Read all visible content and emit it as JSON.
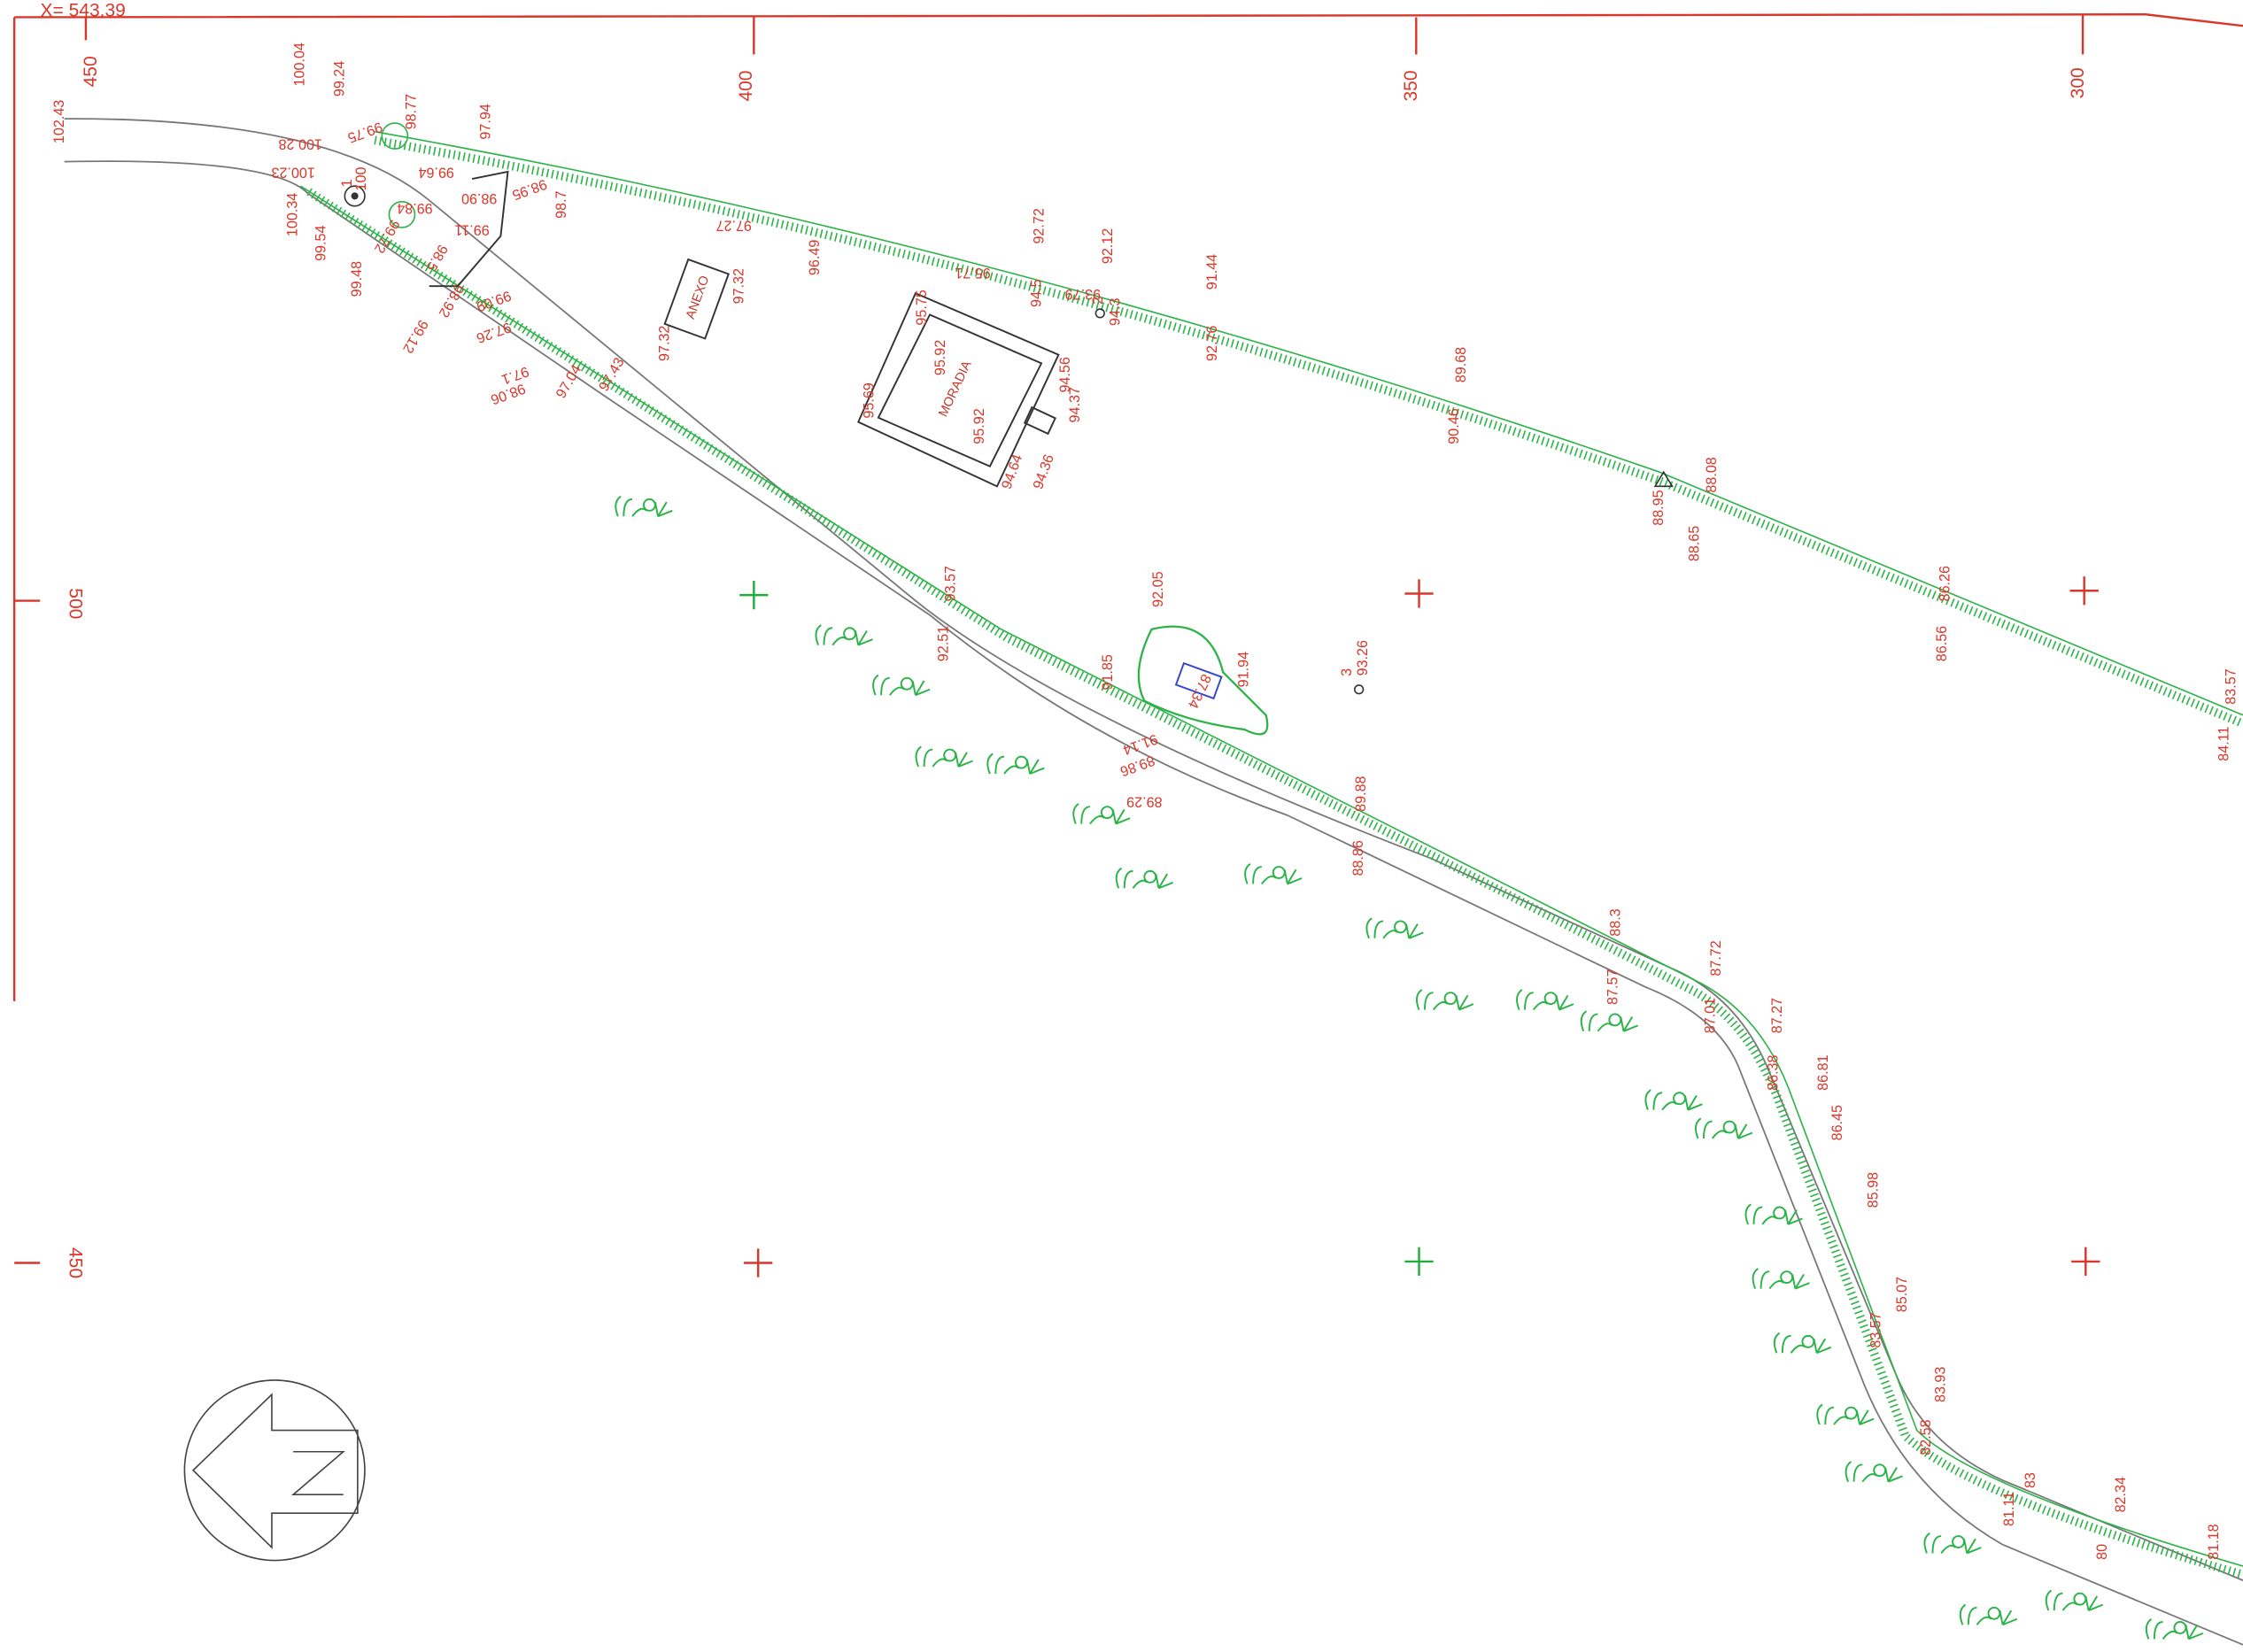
{
  "header": {
    "coordinate": "X= 543.39"
  },
  "grid_labels": [
    "450",
    "400",
    "350",
    "300",
    "500",
    "450"
  ],
  "buildings": [
    "ANEXO",
    "MORADIA"
  ],
  "point_ids": [
    "1",
    "2",
    "3"
  ],
  "spot_heights": [
    "102.43",
    "100.04",
    "99.24",
    "99.75",
    "98.77",
    "97.94",
    "100.28",
    "100.23",
    "100.34",
    "100",
    "99.64",
    "99.84",
    "99.72",
    "99.54",
    "99.48",
    "99.12",
    "98.92",
    "99.09",
    "97.26",
    "98.5",
    "99.11",
    "98.90",
    "98.95",
    "98.7",
    "97.1",
    "98.06",
    "97.04",
    "97.43",
    "97.27",
    "96.49",
    "97.32",
    "97.32",
    "95.71",
    "95.75",
    "95.92",
    "95.69",
    "95.92",
    "94.64",
    "94.36",
    "94.37",
    "94.56",
    "94.5",
    "93.79",
    "92.72",
    "92.12",
    "94.3",
    "91.44",
    "92.76",
    "90.46",
    "89.68",
    "88.95",
    "88.08",
    "88.65",
    "86.56",
    "86.26",
    "84.11",
    "83.57",
    "93.57",
    "92.51",
    "92.05",
    "91.85",
    "91.94",
    "87.34",
    "93.26",
    "91.14",
    "89.86",
    "89.29",
    "88.86",
    "89.88",
    "88.3",
    "87.57",
    "87.72",
    "87.01",
    "87.27",
    "86.38",
    "86.81",
    "86.45",
    "85.98",
    "85.07",
    "83.57",
    "83.93",
    "82.58",
    "81.11",
    "83",
    "82.34",
    "80",
    "81.18"
  ]
}
